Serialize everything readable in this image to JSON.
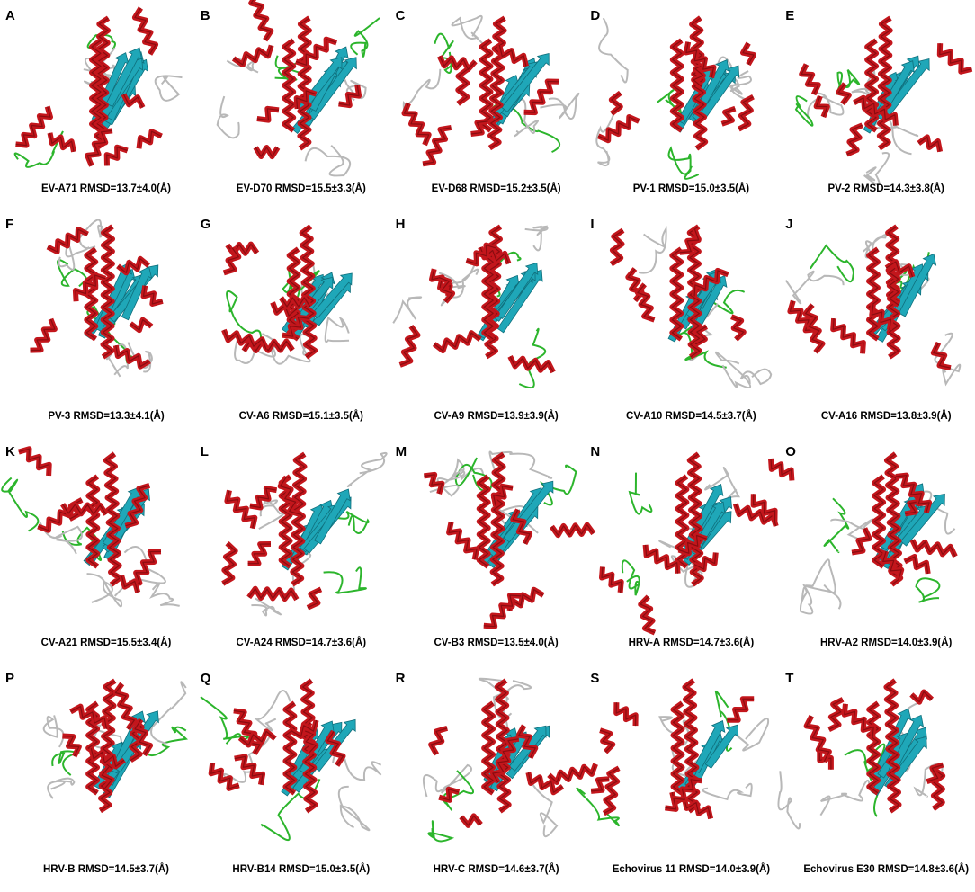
{
  "panels": [
    {
      "letter": "A",
      "caption": "EV-A71 RMSD=13.7±4.0(Å)"
    },
    {
      "letter": "B",
      "caption": "EV-D70 RMSD=15.5±3.3(Å)"
    },
    {
      "letter": "C",
      "caption": "EV-D68 RMSD=15.2±3.5(Å)"
    },
    {
      "letter": "D",
      "caption": "PV-1 RMSD=15.0±3.5(Å)"
    },
    {
      "letter": "E",
      "caption": "PV-2 RMSD=14.3±3.8(Å)"
    },
    {
      "letter": "F",
      "caption": "PV-3 RMSD=13.3±4.1(Å)"
    },
    {
      "letter": "G",
      "caption": "CV-A6 RMSD=15.1±3.5(Å)"
    },
    {
      "letter": "H",
      "caption": "CV-A9 RMSD=13.9±3.9(Å)"
    },
    {
      "letter": "I",
      "caption": "CV-A10 RMSD=14.5±3.7(Å)"
    },
    {
      "letter": "J",
      "caption": "CV-A16 RMSD=13.8±3.9(Å)"
    },
    {
      "letter": "K",
      "caption": "CV-A21 RMSD=15.5±3.4(Å)"
    },
    {
      "letter": "L",
      "caption": "CV-A24 RMSD=14.7±3.6(Å)"
    },
    {
      "letter": "M",
      "caption": "CV-B3 RMSD=13.5±4.0(Å)"
    },
    {
      "letter": "N",
      "caption": "HRV-A RMSD=14.7±3.6(Å)"
    },
    {
      "letter": "O",
      "caption": "HRV-A2 RMSD=14.0±3.9(Å)"
    },
    {
      "letter": "P",
      "caption": "HRV-B RMSD=14.5±3.7(Å)"
    },
    {
      "letter": "Q",
      "caption": "HRV-B14 RMSD=15.0±3.5(Å)"
    },
    {
      "letter": "R",
      "caption": "HRV-C RMSD=14.6±3.7(Å)"
    },
    {
      "letter": "S",
      "caption": "Echovirus 11 RMSD=14.0±3.9(Å)"
    },
    {
      "letter": "T",
      "caption": "Echovirus E30 RMSD=14.8±3.6(Å)"
    }
  ]
}
